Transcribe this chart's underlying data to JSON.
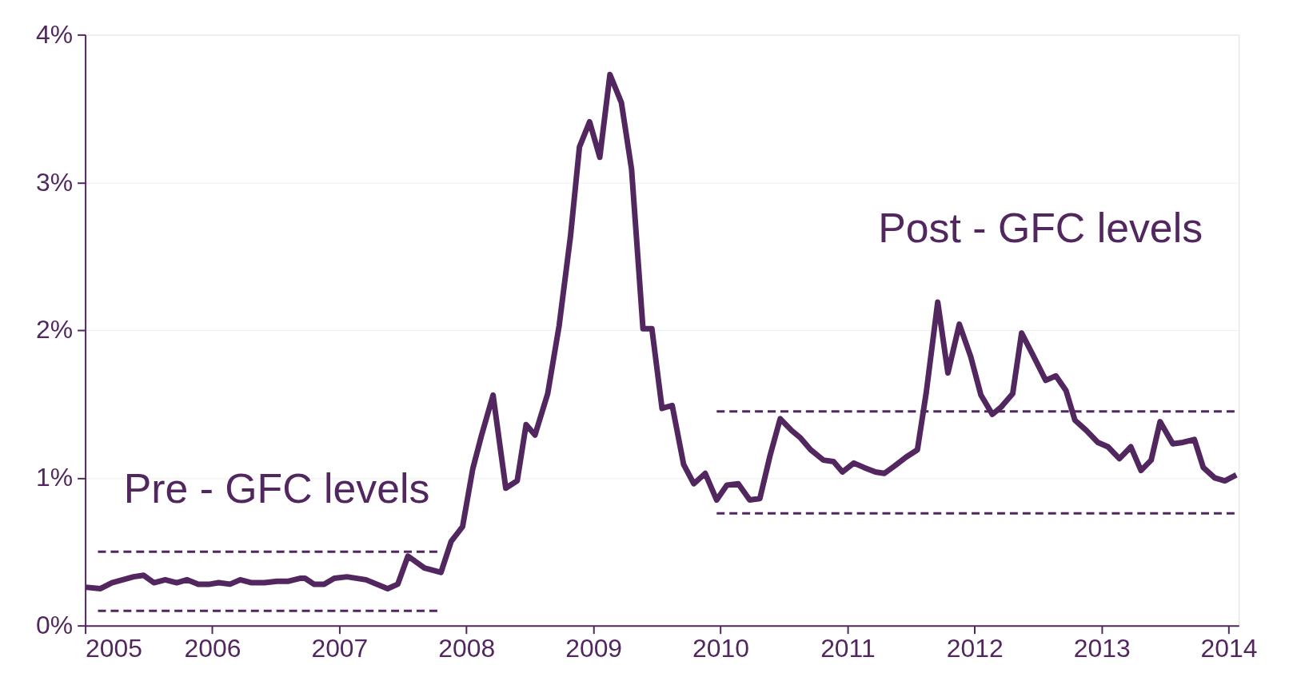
{
  "chart_data": {
    "type": "line",
    "xlim": [
      2005,
      2014.08
    ],
    "xticks": [
      2005,
      2006,
      2007,
      2008,
      2009,
      2010,
      2011,
      2012,
      2013,
      2014
    ],
    "ylim": [
      0,
      4
    ],
    "yticks": [
      {
        "value": 0,
        "label": "0%"
      },
      {
        "value": 1,
        "label": "1%"
      },
      {
        "value": 2,
        "label": "2%"
      },
      {
        "value": 3,
        "label": "3%"
      },
      {
        "value": 4,
        "label": "4%"
      }
    ],
    "grid": "y",
    "marker": "none",
    "annotations": [
      "Pre - GFC levels",
      "Post - GFC levels"
    ],
    "series": [
      {
        "color": "#52275f",
        "line_style": "solid",
        "x": [
          2005.0,
          2005.12,
          2005.21,
          2005.38,
          2005.46,
          2005.54,
          2005.63,
          2005.72,
          2005.8,
          2005.89,
          2005.98,
          2006.05,
          2006.14,
          2006.22,
          2006.31,
          2006.41,
          2006.51,
          2006.6,
          2006.69,
          2006.73,
          2006.8,
          2006.88,
          2006.96,
          2007.06,
          2007.21,
          2007.38,
          2007.46,
          2007.54,
          2007.67,
          2007.8,
          2007.88,
          2007.97,
          2008.05,
          2008.12,
          2008.21,
          2008.31,
          2008.4,
          2008.47,
          2008.54,
          2008.64,
          2008.73,
          2008.82,
          2008.89,
          2008.97,
          2009.05,
          2009.13,
          2009.22,
          2009.3,
          2009.39,
          2009.46,
          2009.54,
          2009.62,
          2009.71,
          2009.79,
          2009.88,
          2009.97,
          2010.05,
          2010.14,
          2010.23,
          2010.31,
          2010.39,
          2010.47,
          2010.56,
          2010.63,
          2010.71,
          2010.81,
          2010.89,
          2010.96,
          2011.05,
          2011.13,
          2011.22,
          2011.29,
          2011.37,
          2011.46,
          2011.55,
          2011.62,
          2011.71,
          2011.79,
          2011.88,
          2011.97,
          2012.05,
          2012.14,
          2012.21,
          2012.3,
          2012.37,
          2012.46,
          2012.56,
          2012.64,
          2012.72,
          2012.79,
          2012.88,
          2012.97,
          2013.05,
          2013.14,
          2013.23,
          2013.31,
          2013.39,
          2013.46,
          2013.56,
          2013.64,
          2013.73,
          2013.8,
          2013.89,
          2013.97,
          2014.06
        ],
        "values": [
          0.26,
          0.25,
          0.29,
          0.33,
          0.34,
          0.29,
          0.31,
          0.29,
          0.31,
          0.28,
          0.28,
          0.29,
          0.28,
          0.31,
          0.29,
          0.29,
          0.3,
          0.3,
          0.32,
          0.32,
          0.28,
          0.28,
          0.32,
          0.33,
          0.31,
          0.25,
          0.28,
          0.47,
          0.39,
          0.36,
          0.57,
          0.67,
          1.06,
          1.29,
          1.56,
          0.93,
          0.98,
          1.36,
          1.29,
          1.57,
          2.03,
          2.64,
          3.24,
          3.41,
          3.17,
          3.73,
          3.54,
          3.09,
          2.01,
          2.01,
          1.47,
          1.49,
          1.09,
          0.96,
          1.03,
          0.85,
          0.95,
          0.96,
          0.85,
          0.86,
          1.15,
          1.4,
          1.32,
          1.27,
          1.19,
          1.12,
          1.11,
          1.04,
          1.1,
          1.07,
          1.04,
          1.03,
          1.08,
          1.14,
          1.19,
          1.58,
          2.19,
          1.71,
          2.04,
          1.82,
          1.56,
          1.43,
          1.48,
          1.57,
          1.98,
          1.83,
          1.66,
          1.69,
          1.59,
          1.39,
          1.32,
          1.24,
          1.21,
          1.13,
          1.21,
          1.05,
          1.12,
          1.38,
          1.23,
          1.24,
          1.26,
          1.07,
          1.0,
          0.98,
          1.02
        ]
      },
      {
        "color": "#52275f",
        "line_style": "dashed",
        "x": [
          2005.1,
          2007.8
        ],
        "values": [
          0.5,
          0.5
        ]
      },
      {
        "color": "#52275f",
        "line_style": "dashed",
        "x": [
          2005.1,
          2007.8
        ],
        "values": [
          0.1,
          0.1
        ]
      },
      {
        "color": "#52275f",
        "line_style": "dashed",
        "x": [
          2009.97,
          2014.08
        ],
        "values": [
          1.45,
          1.45
        ]
      },
      {
        "color": "#52275f",
        "line_style": "dashed",
        "x": [
          2009.97,
          2014.08
        ],
        "values": [
          0.76,
          0.76
        ]
      }
    ]
  }
}
